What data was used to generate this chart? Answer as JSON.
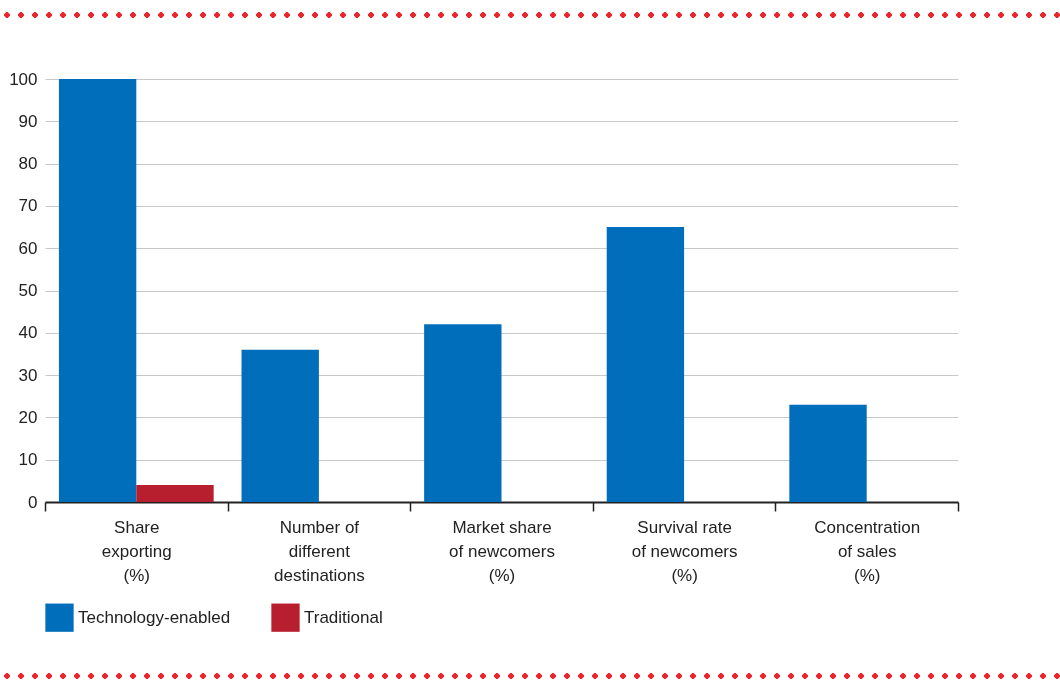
{
  "chart_data": {
    "type": "bar",
    "categories": [
      "Share\nexporting\n(%)",
      "Number of\ndifferent\ndestinations",
      "Market share\nof newcomers\n(%)",
      "Survival rate\nof newcomers\n(%)",
      "Concentration\nof sales\n(%)"
    ],
    "series": [
      {
        "name": "Technology-enabled",
        "color": "#006eba",
        "values": [
          100,
          36,
          42,
          65,
          23
        ]
      },
      {
        "name": "Traditional",
        "color": "#b81f2e",
        "values": [
          4,
          null,
          null,
          null,
          null
        ]
      }
    ],
    "ylim": [
      0,
      100
    ],
    "yticks": [
      0,
      10,
      20,
      30,
      40,
      50,
      60,
      70,
      80,
      90,
      100
    ],
    "grid": "y",
    "legend": "bottom left"
  }
}
